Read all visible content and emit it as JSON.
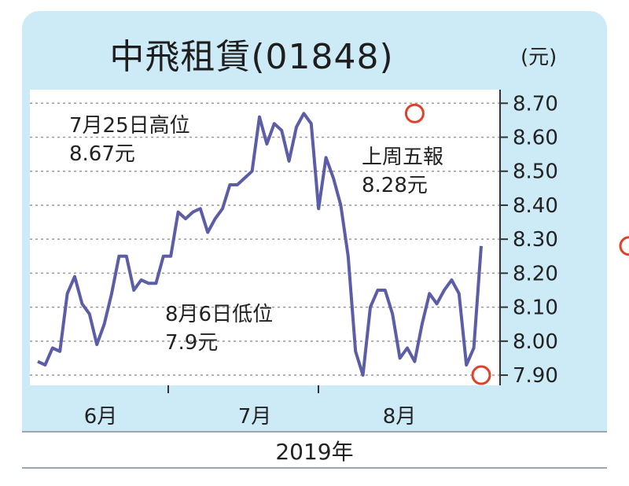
{
  "chart_data": {
    "type": "line",
    "title": "中飛租賃(01848)",
    "unit": "(元)",
    "xlabel": "2019年",
    "ylim": [
      7.87,
      8.74
    ],
    "yticks": [
      "8.70",
      "8.60",
      "8.50",
      "8.40",
      "8.30",
      "8.20",
      "8.10",
      "8.00",
      "7.90"
    ],
    "month_labels": [
      "6月",
      "7月",
      "8月"
    ],
    "grid": true,
    "line_color": "#5b5ea6",
    "marker_color": "#e0402a",
    "annotations": [
      {
        "line1": "7月25日高位",
        "line2": "8.67元",
        "value": 8.67,
        "index": 51
      },
      {
        "line1": "8月6日低位",
        "line2": "7.9元",
        "value": 7.9,
        "index": 60
      },
      {
        "line1": "上周五報",
        "line2": "8.28元",
        "value": 8.28,
        "index": 80
      }
    ],
    "series": [
      {
        "values": [
          7.94,
          7.93,
          7.98,
          7.97,
          8.14,
          8.19,
          8.11,
          8.08,
          7.99,
          8.05,
          8.14,
          8.25,
          8.25,
          8.15,
          8.18,
          8.17,
          8.17,
          8.25,
          8.25,
          8.38,
          8.36,
          8.38,
          8.39,
          8.32,
          8.36,
          8.39,
          8.46,
          8.46,
          8.48,
          8.5,
          8.66,
          8.58,
          8.64,
          8.62,
          8.53,
          8.63,
          8.67,
          8.64,
          8.39,
          8.54,
          8.48,
          8.4,
          8.25,
          7.97,
          7.9,
          8.1,
          8.15,
          8.15,
          8.08,
          7.95,
          7.98,
          7.94,
          8.05,
          8.14,
          8.11,
          8.15,
          8.18,
          8.14,
          7.93,
          7.98,
          8.28
        ]
      }
    ]
  }
}
